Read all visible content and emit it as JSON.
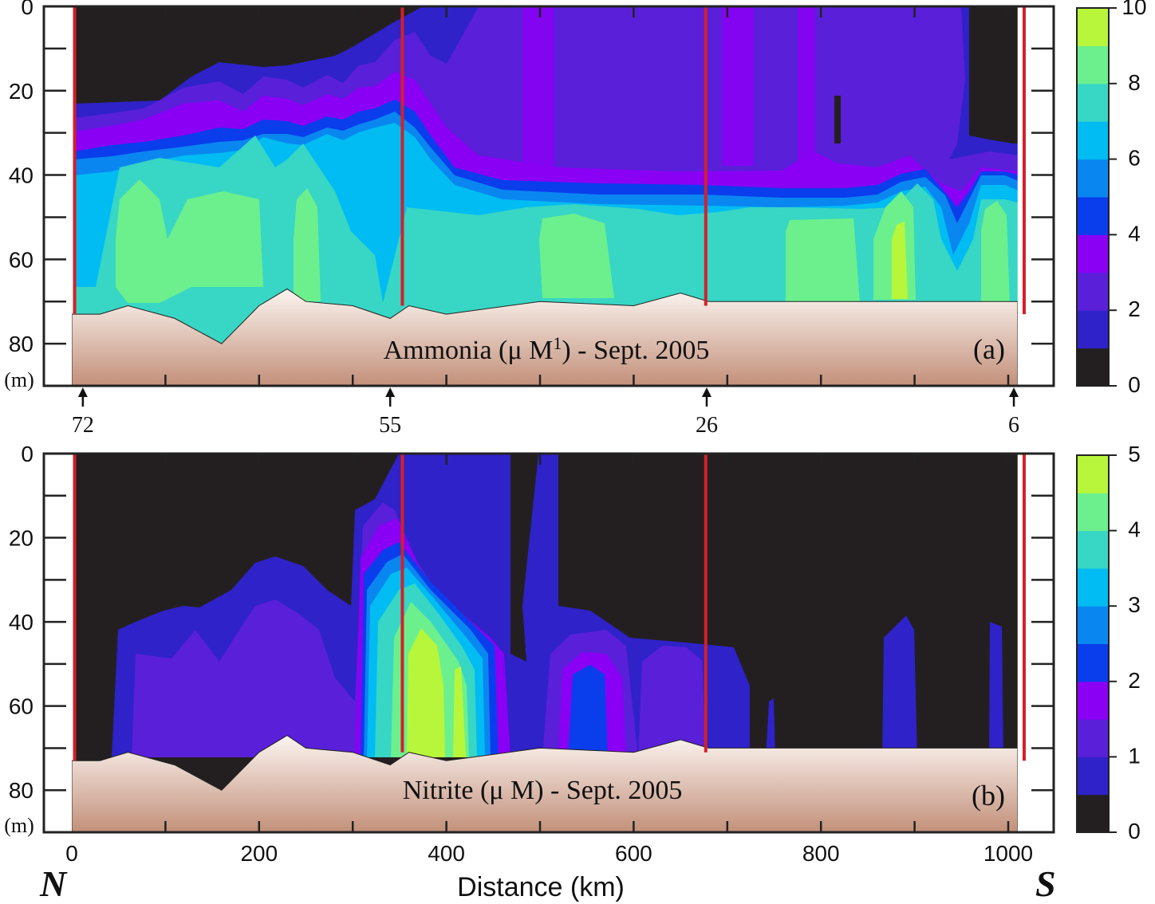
{
  "colors": {
    "background": "#231f20",
    "seabed_top": "#fbf5f1",
    "seabed_bottom": "#c3907a",
    "station_line": "#d3202a",
    "scale": [
      "#231f20",
      "#2e22c8",
      "#5a1fd9",
      "#8a00f5",
      "#0a3dec",
      "#0a86f0",
      "#00bcf2",
      "#38d6c4",
      "#6cf08d",
      "#b8f63b"
    ]
  },
  "chart_data": [
    {
      "type": "heatmap",
      "panel": "(a)",
      "title": "Ammonia (μ M",
      "title_sup": "1",
      "title_tail": ") - Sept. 2005",
      "variable": "Ammonia",
      "units": "μM",
      "ylabel": "(m)",
      "yticks": [
        "0",
        "20",
        "40",
        "60",
        "80"
      ],
      "ylim": [
        0,
        90
      ],
      "xlim": [
        -10,
        1050
      ],
      "colorbar": {
        "ticks": [
          "0",
          "2",
          "4",
          "6",
          "8",
          "10"
        ],
        "range": [
          0,
          10
        ],
        "step": 1
      },
      "stations": [
        {
          "label": "72",
          "x_km": 5
        },
        {
          "label": "55",
          "x_km": 340
        },
        {
          "label": "26",
          "x_km": 678
        },
        {
          "label": "6",
          "x_km": 1006
        }
      ],
      "station_lines_km": [
        3,
        353,
        677,
        1017
      ],
      "contour_depths_m": [
        {
          "level": 0.5,
          "depths": [
            [
              0,
              24
            ],
            [
              50,
              24
            ],
            [
              130,
              18
            ],
            [
              180,
              14
            ],
            [
              250,
              10
            ],
            [
              330,
              4
            ],
            [
              340,
              0
            ]
          ]
        },
        {
          "level": 3,
          "depths": [
            [
              0,
              34
            ],
            [
              80,
              31
            ],
            [
              140,
              30
            ],
            [
              200,
              24
            ],
            [
              250,
              28
            ],
            [
              300,
              22
            ],
            [
              340,
              20
            ],
            [
              400,
              38
            ],
            [
              500,
              44
            ],
            [
              700,
              44
            ],
            [
              850,
              44
            ],
            [
              920,
              40
            ],
            [
              980,
              38
            ],
            [
              1010,
              40
            ]
          ]
        },
        {
          "level": 5,
          "depths": [
            [
              0,
              40
            ],
            [
              150,
              35
            ],
            [
              300,
              33
            ],
            [
              360,
              38
            ],
            [
              450,
              46
            ],
            [
              700,
              48
            ],
            [
              950,
              49
            ],
            [
              1010,
              45
            ]
          ]
        },
        {
          "level": 7,
          "depths": [
            [
              60,
              42
            ],
            [
              200,
              40
            ],
            [
              300,
              46
            ],
            [
              500,
              52
            ],
            [
              700,
              52
            ],
            [
              900,
              50
            ]
          ]
        }
      ],
      "bathymetry_km_m": [
        [
          0,
          73
        ],
        [
          30,
          73
        ],
        [
          60,
          71
        ],
        [
          110,
          74
        ],
        [
          160,
          80
        ],
        [
          200,
          71
        ],
        [
          230,
          67
        ],
        [
          250,
          70
        ],
        [
          300,
          71
        ],
        [
          340,
          74
        ],
        [
          360,
          71
        ],
        [
          400,
          73
        ],
        [
          500,
          70
        ],
        [
          600,
          71
        ],
        [
          650,
          68
        ],
        [
          680,
          70
        ],
        [
          750,
          70
        ],
        [
          800,
          70
        ],
        [
          900,
          70
        ],
        [
          1010,
          70
        ]
      ]
    },
    {
      "type": "heatmap",
      "panel": "(b)",
      "title": "Nitrite (μ M) - Sept. 2005",
      "variable": "Nitrite",
      "units": "μM",
      "ylabel": "(m)",
      "xlabel": "Distance (km)",
      "xticks": [
        "0",
        "200",
        "400",
        "600",
        "800",
        "1000"
      ],
      "yticks": [
        "0",
        "20",
        "40",
        "60",
        "80"
      ],
      "ylim": [
        0,
        90
      ],
      "xlim": [
        -10,
        1050
      ],
      "colorbar": {
        "ticks": [
          "0",
          "1",
          "2",
          "3",
          "4",
          "5"
        ],
        "range": [
          0,
          5
        ],
        "step": 0.5
      },
      "station_lines_km": [
        3,
        353,
        677,
        1017
      ],
      "peak": {
        "x_km": 385,
        "depth_m": 50,
        "value": 5
      },
      "bathymetry_km_m": [
        [
          0,
          73
        ],
        [
          30,
          73
        ],
        [
          60,
          71
        ],
        [
          110,
          74
        ],
        [
          160,
          80
        ],
        [
          200,
          71
        ],
        [
          230,
          67
        ],
        [
          250,
          70
        ],
        [
          300,
          71
        ],
        [
          340,
          74
        ],
        [
          360,
          71
        ],
        [
          400,
          73
        ],
        [
          500,
          70
        ],
        [
          600,
          71
        ],
        [
          650,
          68
        ],
        [
          680,
          70
        ],
        [
          750,
          70
        ],
        [
          800,
          70
        ],
        [
          900,
          70
        ],
        [
          1010,
          70
        ]
      ]
    }
  ],
  "direction": {
    "north": "N",
    "south": "S"
  }
}
